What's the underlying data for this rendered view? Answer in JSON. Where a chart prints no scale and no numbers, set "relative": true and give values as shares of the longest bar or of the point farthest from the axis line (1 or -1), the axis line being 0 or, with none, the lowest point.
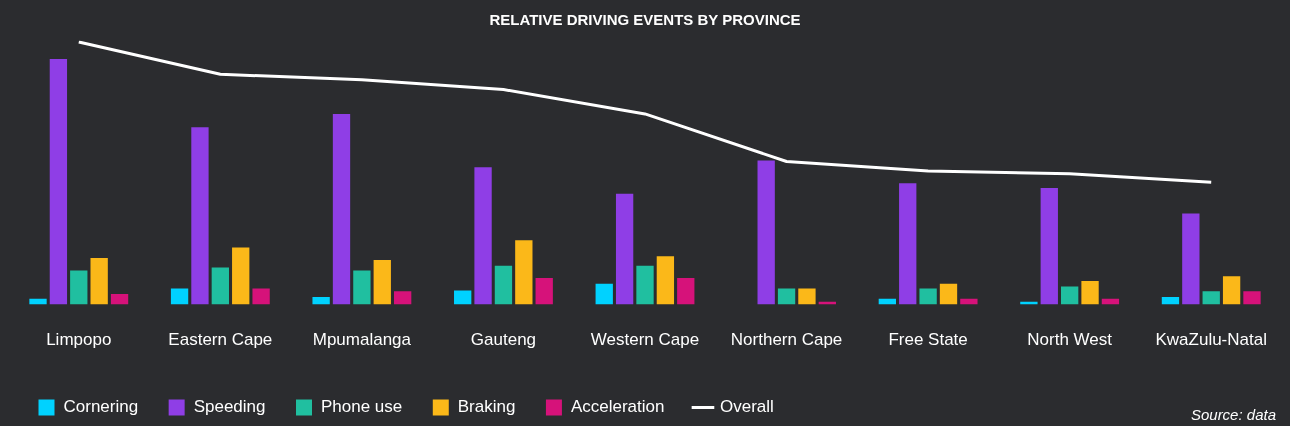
{
  "chart_data": {
    "type": "bar",
    "title": "RELATIVE DRIVING EVENTS BY PROVINCE",
    "relative": true,
    "legend": "bottom",
    "annotations": [
      "Source: data"
    ],
    "categories": [
      "Limpopo",
      "Eastern Cape",
      "Mpumalanga",
      "Gauteng",
      "Western Cape",
      "Northern Cape",
      "Free State",
      "North West",
      "KwaZulu-Natal"
    ],
    "series": [
      {
        "name": "Cornering",
        "color": "#00d2ff",
        "values": [
          0.022,
          0.061,
          0.029,
          0.054,
          0.079,
          0,
          0.022,
          0.011,
          0.029
        ]
      },
      {
        "name": "Speeding",
        "color": "#8f3ee6",
        "values": [
          0.935,
          0.675,
          0.726,
          0.523,
          0.422,
          0.549,
          0.462,
          0.444,
          0.347
        ]
      },
      {
        "name": "Phone use",
        "color": "#20bfa0",
        "values": [
          0.13,
          0.141,
          0.13,
          0.148,
          0.148,
          0.061,
          0.061,
          0.069,
          0.051
        ]
      },
      {
        "name": "Braking",
        "color": "#fbb819",
        "values": [
          0.177,
          0.217,
          0.17,
          0.245,
          0.184,
          0.061,
          0.079,
          0.09,
          0.108
        ]
      },
      {
        "name": "Acceleration",
        "color": "#d6127a",
        "values": [
          0.04,
          0.061,
          0.051,
          0.101,
          0.101,
          0.011,
          0.022,
          0.022,
          0.051
        ]
      },
      {
        "name": "Overall",
        "type": "line",
        "color": "#ffffff",
        "values": [
          1,
          0.877,
          0.856,
          0.819,
          0.726,
          0.545,
          0.509,
          0.498,
          0.466
        ]
      }
    ]
  }
}
